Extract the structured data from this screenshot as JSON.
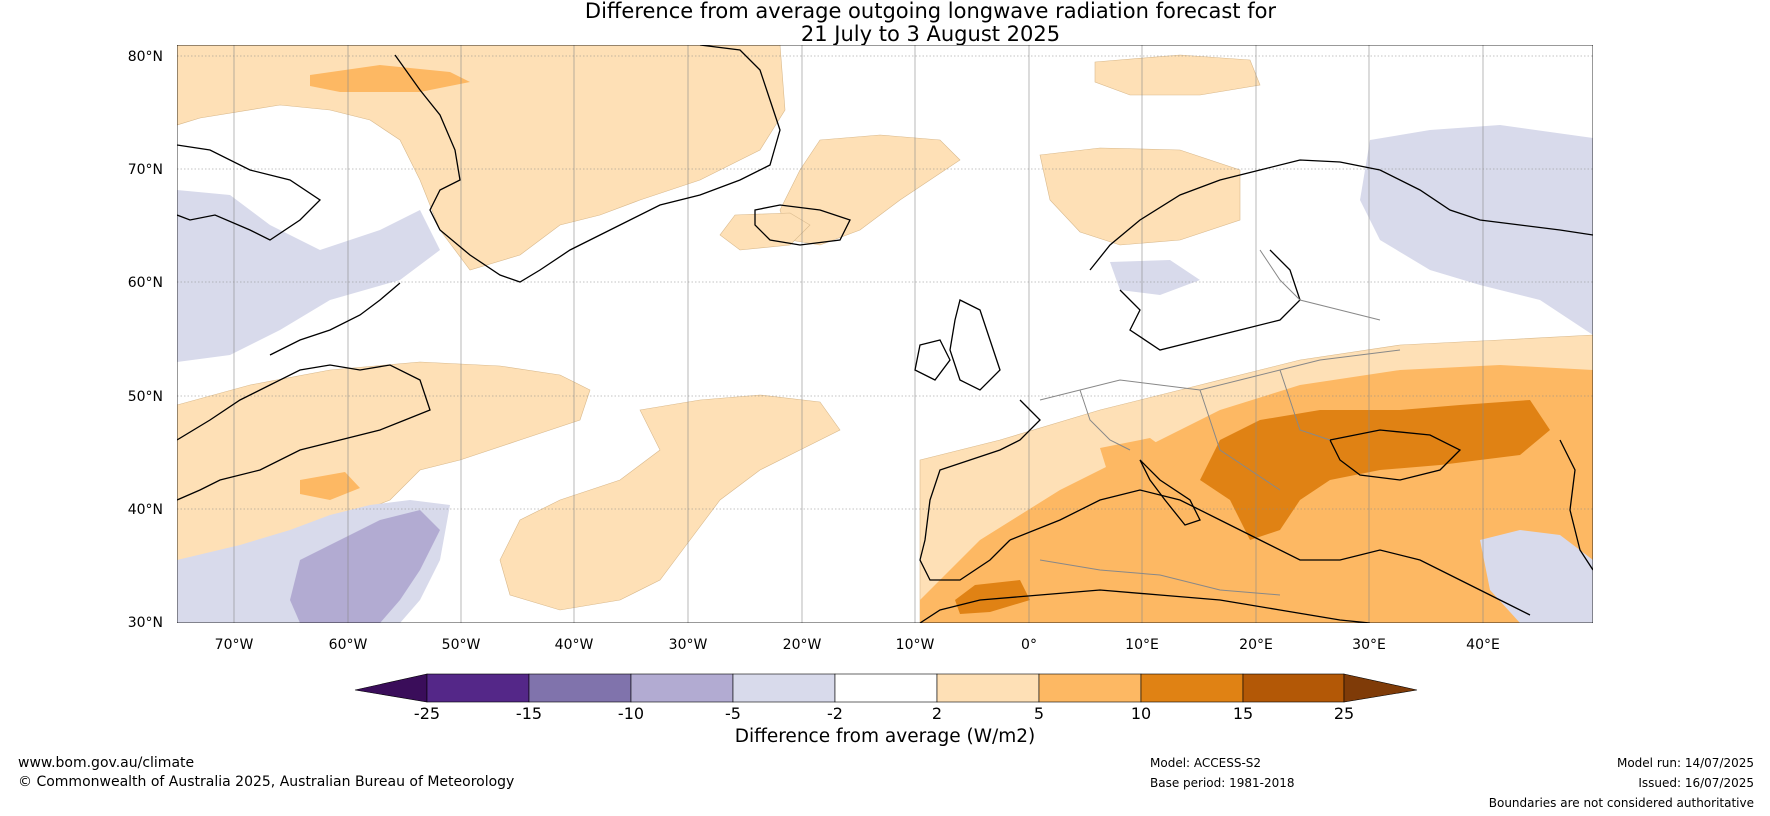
{
  "title_line1": "Difference from average outgoing longwave radiation forecast for",
  "title_line2": "21 July to 3 August 2025",
  "lat_labels": [
    "80°N",
    "70°N",
    "60°N",
    "50°N",
    "40°N",
    "30°N"
  ],
  "lon_labels": [
    "70°W",
    "60°W",
    "50°W",
    "40°W",
    "30°W",
    "20°W",
    "10°W",
    "0°",
    "10°E",
    "20°E",
    "30°E",
    "40°E"
  ],
  "colorbar": {
    "ticks": [
      "-25",
      "-15",
      "-10",
      "-5",
      "-2",
      "2",
      "5",
      "10",
      "15",
      "25"
    ],
    "colors": [
      "#3a0d5a",
      "#542788",
      "#8073ac",
      "#b2abd2",
      "#d8daeb",
      "#ffffff",
      "#fee0b6",
      "#fdb863",
      "#e08214",
      "#b35806",
      "#7f3b08"
    ],
    "label": "Difference from average (W/m2)"
  },
  "footer": {
    "website": "www.bom.gov.au/climate",
    "copyright": "© Commonwealth of Australia 2025, Australian Bureau of Meteorology",
    "model": "Model: ACCESS-S2",
    "base_period": "Base period: 1981-2018",
    "model_run": "Model run: 14/07/2025",
    "issued": "Issued: 16/07/2025",
    "disclaimer": "Boundaries are not considered authoritative"
  }
}
